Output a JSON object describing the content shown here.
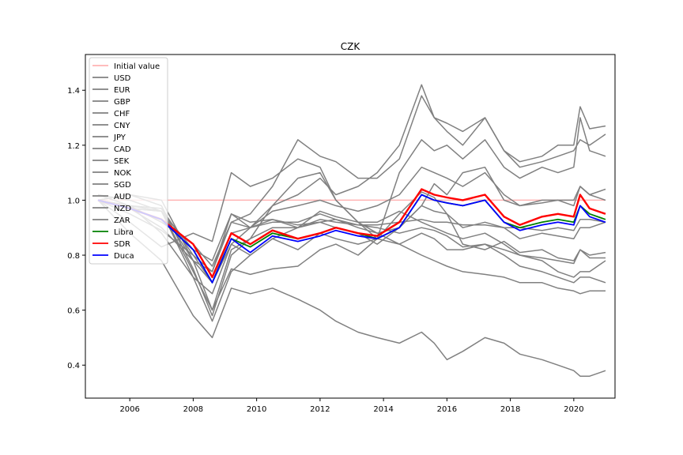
{
  "chart_data": {
    "type": "line",
    "title": "CZK",
    "xlabel": "",
    "ylabel": "",
    "xlim": [
      2004.6,
      2021.3
    ],
    "ylim": [
      0.28,
      1.53
    ],
    "xticks": [
      2006,
      2008,
      2010,
      2012,
      2014,
      2016,
      2018,
      2020
    ],
    "xtick_labels": [
      "2006",
      "2008",
      "2010",
      "2012",
      "2014",
      "2016",
      "2018",
      "2020"
    ],
    "yticks": [
      0.4,
      0.6,
      0.8,
      1.0,
      1.2,
      1.4
    ],
    "ytick_labels": [
      "0.4",
      "0.6",
      "0.8",
      "1.0",
      "1.2",
      "1.4"
    ],
    "grid": false,
    "legend_location": "upper left",
    "x": [
      2005.0,
      2006.0,
      2007.0,
      2008.0,
      2008.6,
      2009.2,
      2009.8,
      2010.5,
      2011.3,
      2012.0,
      2012.5,
      2013.2,
      2013.8,
      2014.5,
      2015.2,
      2015.6,
      2016.0,
      2016.5,
      2017.2,
      2017.8,
      2018.3,
      2019.0,
      2019.5,
      2020.0,
      2020.2,
      2020.5,
      2021.0
    ],
    "series": [
      {
        "name": "Initial value",
        "color": "#ffb3b3",
        "width": 1.5,
        "values": [
          1.0,
          1.0,
          1.0,
          1.0,
          1.0,
          1.0,
          1.0,
          1.0,
          1.0,
          1.0,
          1.0,
          1.0,
          1.0,
          1.0,
          1.0,
          1.0,
          1.0,
          1.0,
          1.0,
          1.0,
          1.0,
          1.0,
          1.0,
          1.0,
          1.0,
          1.0,
          1.0
        ]
      },
      {
        "name": "USD",
        "color": "#808080",
        "width": 1.5,
        "values": [
          1.02,
          0.98,
          0.88,
          0.72,
          0.66,
          0.84,
          0.8,
          0.86,
          0.82,
          0.88,
          0.86,
          0.84,
          0.86,
          1.1,
          1.22,
          1.18,
          1.2,
          1.15,
          1.22,
          1.12,
          1.08,
          1.12,
          1.1,
          1.12,
          1.3,
          1.18,
          1.16
        ]
      },
      {
        "name": "EUR",
        "color": "#808080",
        "width": 1.5,
        "values": [
          1.0,
          0.98,
          0.96,
          0.82,
          0.78,
          0.95,
          0.92,
          0.93,
          0.9,
          0.93,
          0.92,
          0.91,
          0.91,
          0.92,
          0.93,
          0.92,
          0.92,
          0.91,
          0.91,
          0.9,
          0.9,
          0.89,
          0.9,
          0.89,
          0.93,
          0.93,
          0.92
        ]
      },
      {
        "name": "GBP",
        "color": "#808080",
        "width": 1.5,
        "values": [
          1.0,
          0.97,
          0.96,
          0.74,
          0.6,
          0.75,
          0.73,
          0.75,
          0.76,
          0.82,
          0.84,
          0.8,
          0.86,
          0.95,
          1.03,
          1.01,
          0.95,
          0.84,
          0.82,
          0.85,
          0.81,
          0.82,
          0.79,
          0.78,
          0.82,
          0.79,
          0.79
        ]
      },
      {
        "name": "CHF",
        "color": "#808080",
        "width": 1.5,
        "values": [
          1.0,
          0.97,
          0.9,
          0.78,
          0.74,
          0.92,
          0.95,
          1.05,
          1.22,
          1.16,
          1.14,
          1.08,
          1.08,
          1.15,
          1.38,
          1.3,
          1.28,
          1.25,
          1.3,
          1.18,
          1.14,
          1.16,
          1.2,
          1.2,
          1.34,
          1.26,
          1.27
        ]
      },
      {
        "name": "CNY",
        "color": "#808080",
        "width": 1.5,
        "values": [
          1.0,
          0.95,
          0.89,
          0.8,
          0.74,
          0.95,
          0.9,
          0.98,
          1.02,
          1.08,
          1.02,
          1.05,
          1.1,
          1.2,
          1.42,
          1.3,
          1.25,
          1.2,
          1.3,
          1.18,
          1.12,
          1.14,
          1.16,
          1.18,
          1.22,
          1.2,
          1.24
        ]
      },
      {
        "name": "JPY",
        "color": "#808080",
        "width": 1.5,
        "values": [
          1.0,
          0.92,
          0.83,
          0.88,
          0.85,
          1.1,
          1.05,
          1.08,
          1.15,
          1.12,
          1.0,
          0.92,
          0.88,
          0.9,
          0.98,
          1.06,
          1.02,
          1.1,
          1.12,
          1.0,
          0.98,
          0.99,
          1.0,
          0.98,
          1.05,
          1.02,
          1.0
        ]
      },
      {
        "name": "CAD",
        "color": "#808080",
        "width": 1.5,
        "values": [
          1.0,
          1.02,
          1.0,
          0.78,
          0.6,
          0.82,
          0.86,
          0.9,
          0.9,
          0.92,
          0.9,
          0.88,
          0.84,
          0.9,
          0.98,
          0.96,
          0.95,
          0.9,
          0.92,
          0.9,
          0.86,
          0.88,
          0.87,
          0.86,
          0.9,
          0.9,
          0.92
        ]
      },
      {
        "name": "SEK",
        "color": "#808080",
        "width": 1.5,
        "values": [
          1.0,
          0.97,
          0.96,
          0.78,
          0.7,
          0.84,
          0.9,
          0.93,
          0.91,
          0.92,
          0.93,
          0.91,
          0.9,
          0.88,
          0.9,
          0.89,
          0.87,
          0.83,
          0.84,
          0.82,
          0.8,
          0.79,
          0.78,
          0.77,
          0.82,
          0.8,
          0.81
        ]
      },
      {
        "name": "NOK",
        "color": "#808080",
        "width": 1.5,
        "values": [
          1.0,
          0.98,
          0.97,
          0.8,
          0.7,
          0.88,
          0.9,
          0.92,
          0.92,
          0.95,
          0.93,
          0.9,
          0.88,
          0.84,
          0.8,
          0.78,
          0.76,
          0.74,
          0.73,
          0.72,
          0.7,
          0.7,
          0.68,
          0.67,
          0.66,
          0.67,
          0.67
        ]
      },
      {
        "name": "SGD",
        "color": "#808080",
        "width": 1.5,
        "values": [
          1.0,
          0.98,
          0.92,
          0.84,
          0.76,
          0.92,
          0.9,
          0.96,
          0.98,
          1.0,
          0.98,
          0.96,
          0.98,
          1.02,
          1.12,
          1.1,
          1.08,
          1.05,
          1.1,
          1.02,
          0.98,
          1.0,
          1.0,
          1.0,
          1.05,
          1.02,
          1.04
        ]
      },
      {
        "name": "AUD",
        "color": "#808080",
        "width": 1.5,
        "values": [
          1.0,
          1.02,
          0.98,
          0.75,
          0.58,
          0.8,
          0.86,
          0.98,
          1.08,
          1.1,
          1.0,
          0.92,
          0.86,
          0.84,
          0.88,
          0.86,
          0.82,
          0.82,
          0.84,
          0.8,
          0.76,
          0.74,
          0.72,
          0.7,
          0.72,
          0.72,
          0.7
        ]
      },
      {
        "name": "NZD",
        "color": "#808080",
        "width": 1.5,
        "values": [
          1.02,
          1.0,
          0.96,
          0.72,
          0.56,
          0.74,
          0.8,
          0.86,
          0.9,
          0.96,
          0.94,
          0.92,
          0.92,
          0.96,
          0.92,
          0.9,
          0.88,
          0.86,
          0.88,
          0.84,
          0.8,
          0.78,
          0.74,
          0.72,
          0.74,
          0.74,
          0.78
        ]
      },
      {
        "name": "ZAR",
        "color": "#808080",
        "width": 1.5,
        "values": [
          1.0,
          0.88,
          0.78,
          0.58,
          0.5,
          0.68,
          0.66,
          0.68,
          0.64,
          0.6,
          0.56,
          0.52,
          0.5,
          0.48,
          0.52,
          0.48,
          0.42,
          0.45,
          0.5,
          0.48,
          0.44,
          0.42,
          0.4,
          0.38,
          0.36,
          0.36,
          0.38
        ]
      },
      {
        "name": "Libra",
        "color": "#008000",
        "width": 1.8,
        "values": [
          1.0,
          0.97,
          0.93,
          0.82,
          0.7,
          0.86,
          0.83,
          0.88,
          0.86,
          0.88,
          0.9,
          0.88,
          0.86,
          0.9,
          1.02,
          1.0,
          0.99,
          0.98,
          1.0,
          0.92,
          0.9,
          0.92,
          0.93,
          0.92,
          0.98,
          0.95,
          0.93
        ]
      },
      {
        "name": "SDR",
        "color": "#ff0000",
        "width": 2.4,
        "values": [
          1.0,
          0.97,
          0.93,
          0.84,
          0.72,
          0.88,
          0.84,
          0.89,
          0.86,
          0.88,
          0.9,
          0.88,
          0.87,
          0.92,
          1.04,
          1.02,
          1.01,
          1.0,
          1.02,
          0.94,
          0.91,
          0.94,
          0.95,
          0.94,
          1.02,
          0.97,
          0.95
        ]
      },
      {
        "name": "Duca",
        "color": "#0000ff",
        "width": 1.8,
        "values": [
          1.0,
          0.97,
          0.93,
          0.82,
          0.7,
          0.86,
          0.81,
          0.87,
          0.85,
          0.87,
          0.89,
          0.87,
          0.86,
          0.9,
          1.02,
          1.0,
          0.99,
          0.98,
          1.0,
          0.92,
          0.89,
          0.91,
          0.92,
          0.91,
          0.98,
          0.94,
          0.92
        ]
      }
    ]
  }
}
